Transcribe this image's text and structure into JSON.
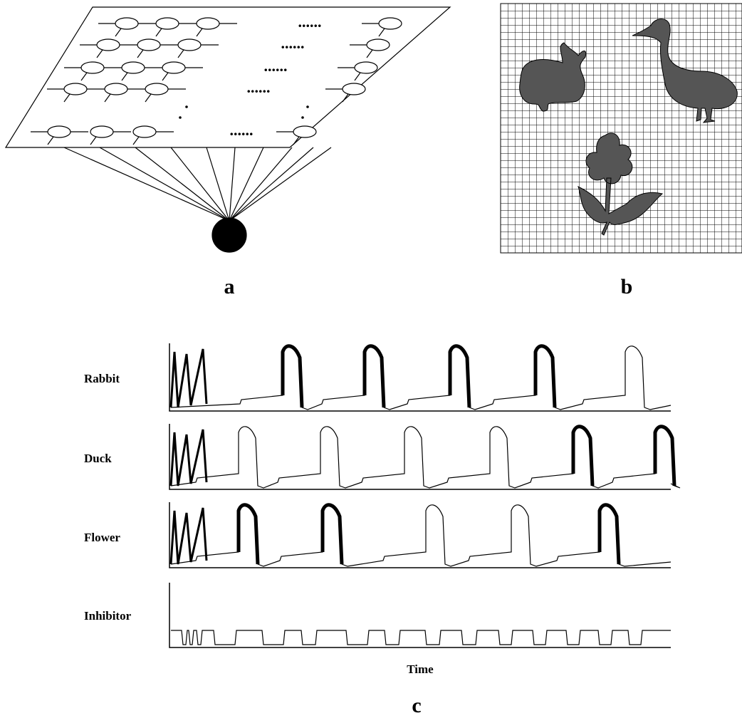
{
  "panel_labels": [
    "a",
    "b",
    "c"
  ],
  "traces": {
    "rows": [
      "Rabbit",
      "Duck",
      "Flower",
      "Inhibitor"
    ],
    "x_label": "Time"
  }
}
